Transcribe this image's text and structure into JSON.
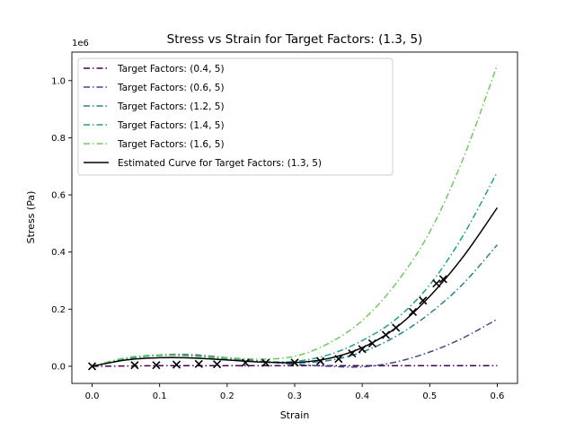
{
  "chart_data": {
    "type": "line",
    "title": "Stress vs Strain for Target Factors: (1.3, 5)",
    "xlabel": "Strain",
    "ylabel": "Stress (Pa)",
    "y_offset_label": "1e6",
    "xlim": [
      -0.03,
      0.63
    ],
    "ylim": [
      -0.06,
      1.1
    ],
    "x_ticks": [
      0.0,
      0.1,
      0.2,
      0.3,
      0.4,
      0.5,
      0.6
    ],
    "x_tick_labels": [
      "0.0",
      "0.1",
      "0.2",
      "0.3",
      "0.4",
      "0.5",
      "0.6"
    ],
    "y_ticks": [
      0.0,
      0.2,
      0.4,
      0.6,
      0.8,
      1.0
    ],
    "y_tick_labels": [
      "0.0",
      "0.2",
      "0.4",
      "0.6",
      "0.8",
      "1.0"
    ],
    "grid": false,
    "legend_position": "top-left",
    "series": [
      {
        "name": "Target Factors: (0.4, 5)",
        "color": "#440154",
        "style": "dashdot",
        "x": [
          0,
          0.05,
          0.1,
          0.15,
          0.2,
          0.25,
          0.3,
          0.35,
          0.4,
          0.45,
          0.5,
          0.55,
          0.6
        ],
        "y": [
          0,
          0.001,
          0.002,
          0.002,
          0.002,
          0.002,
          0.002,
          0.002,
          0.002,
          0.002,
          0.002,
          0.002,
          0.002
        ]
      },
      {
        "name": "Target Factors: (0.6, 5)",
        "color": "#3e4a89",
        "style": "dashdot",
        "x": [
          0,
          0.05,
          0.1,
          0.15,
          0.2,
          0.25,
          0.3,
          0.35,
          0.4,
          0.45,
          0.5,
          0.55,
          0.6
        ],
        "y": [
          0,
          0.025,
          0.04,
          0.04,
          0.03,
          0.018,
          0.007,
          0.0,
          -0.002,
          0.015,
          0.05,
          0.1,
          0.165
        ]
      },
      {
        "name": "Target Factors: (1.2, 5)",
        "color": "#26828e",
        "style": "dashdot",
        "x": [
          0,
          0.05,
          0.1,
          0.15,
          0.2,
          0.25,
          0.3,
          0.35,
          0.4,
          0.45,
          0.5,
          0.55,
          0.6
        ],
        "y": [
          0,
          0.026,
          0.038,
          0.036,
          0.026,
          0.016,
          0.012,
          0.02,
          0.05,
          0.105,
          0.185,
          0.29,
          0.425
        ]
      },
      {
        "name": "Target Factors: (1.4, 5)",
        "color": "#1fa187",
        "style": "dashdot",
        "x": [
          0,
          0.05,
          0.1,
          0.15,
          0.2,
          0.25,
          0.3,
          0.35,
          0.4,
          0.45,
          0.5,
          0.55,
          0.6
        ],
        "y": [
          0,
          0.027,
          0.038,
          0.035,
          0.026,
          0.017,
          0.017,
          0.04,
          0.09,
          0.165,
          0.285,
          0.46,
          0.68
        ]
      },
      {
        "name": "Target Factors: (1.6, 5)",
        "color": "#6ccd5a",
        "style": "dashdot",
        "x": [
          0,
          0.05,
          0.1,
          0.15,
          0.2,
          0.25,
          0.3,
          0.35,
          0.4,
          0.45,
          0.5,
          0.55,
          0.6
        ],
        "y": [
          0,
          0.03,
          0.04,
          0.036,
          0.03,
          0.025,
          0.035,
          0.08,
          0.16,
          0.29,
          0.47,
          0.73,
          1.055
        ]
      },
      {
        "name": "Estimated Curve for Target Factors: (1.3, 5)",
        "color": "#000000",
        "style": "solid",
        "x": [
          0,
          0.05,
          0.1,
          0.15,
          0.2,
          0.25,
          0.3,
          0.35,
          0.4,
          0.45,
          0.5,
          0.55,
          0.6
        ],
        "y": [
          0,
          0.022,
          0.03,
          0.029,
          0.022,
          0.015,
          0.013,
          0.027,
          0.065,
          0.135,
          0.245,
          0.385,
          0.555
        ]
      }
    ],
    "markers": {
      "style": "x",
      "color": "#000000",
      "x": [
        0.0,
        0.063,
        0.095,
        0.125,
        0.158,
        0.185,
        0.227,
        0.257,
        0.3,
        0.338,
        0.365,
        0.385,
        0.4,
        0.415,
        0.435,
        0.45,
        0.475,
        0.49,
        0.51,
        0.52
      ],
      "y": [
        0.0,
        0.004,
        0.004,
        0.006,
        0.008,
        0.007,
        0.012,
        0.012,
        0.013,
        0.018,
        0.026,
        0.045,
        0.06,
        0.08,
        0.11,
        0.135,
        0.19,
        0.23,
        0.29,
        0.305
      ]
    }
  }
}
